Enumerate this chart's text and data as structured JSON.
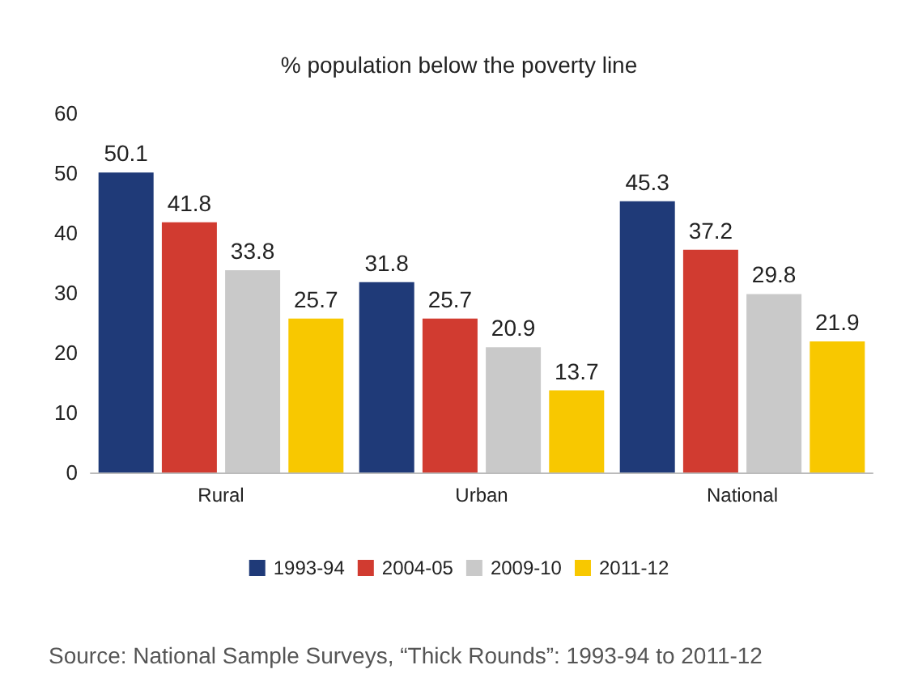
{
  "chart_data": {
    "type": "bar",
    "title": "% population below the poverty line",
    "categories": [
      "Rural",
      "Urban",
      "National"
    ],
    "series": [
      {
        "name": "1993-94",
        "color": "#1f3a78",
        "values": [
          50.1,
          31.8,
          45.3
        ]
      },
      {
        "name": "2004-05",
        "color": "#d13b30",
        "values": [
          41.8,
          25.7,
          37.2
        ]
      },
      {
        "name": "2009-10",
        "color": "#c9c9c9",
        "values": [
          33.8,
          20.9,
          29.8
        ]
      },
      {
        "name": "2011-12",
        "color": "#f8c800",
        "values": [
          25.7,
          13.7,
          21.9
        ]
      }
    ],
    "ylim": [
      0,
      60
    ],
    "yticks": [
      0,
      10,
      20,
      30,
      40,
      50,
      60
    ],
    "grid": false,
    "legend": "bottom",
    "data_labels": true,
    "annotations": [
      "Source: National Sample Surveys, “Thick Rounds”: 1993-94 to 2011-12"
    ]
  }
}
